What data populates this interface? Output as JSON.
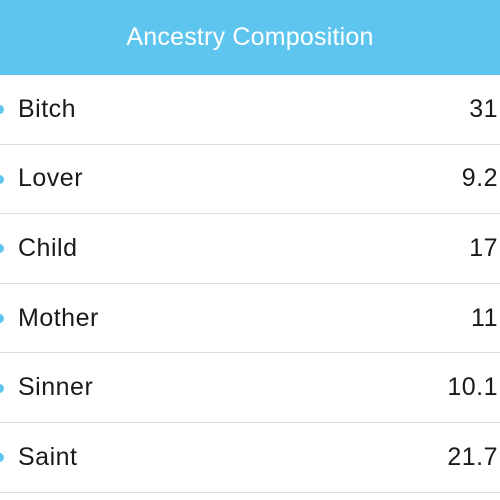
{
  "header": {
    "title": "Ancestry Composition"
  },
  "table": {
    "rows": [
      [
        "Bitch",
        31
      ],
      [
        "Lover",
        9.2
      ],
      [
        "Child",
        17
      ],
      [
        "Mother",
        11
      ],
      [
        "Sinner",
        10.1
      ],
      [
        "Saint",
        21.7
      ]
    ]
  }
}
